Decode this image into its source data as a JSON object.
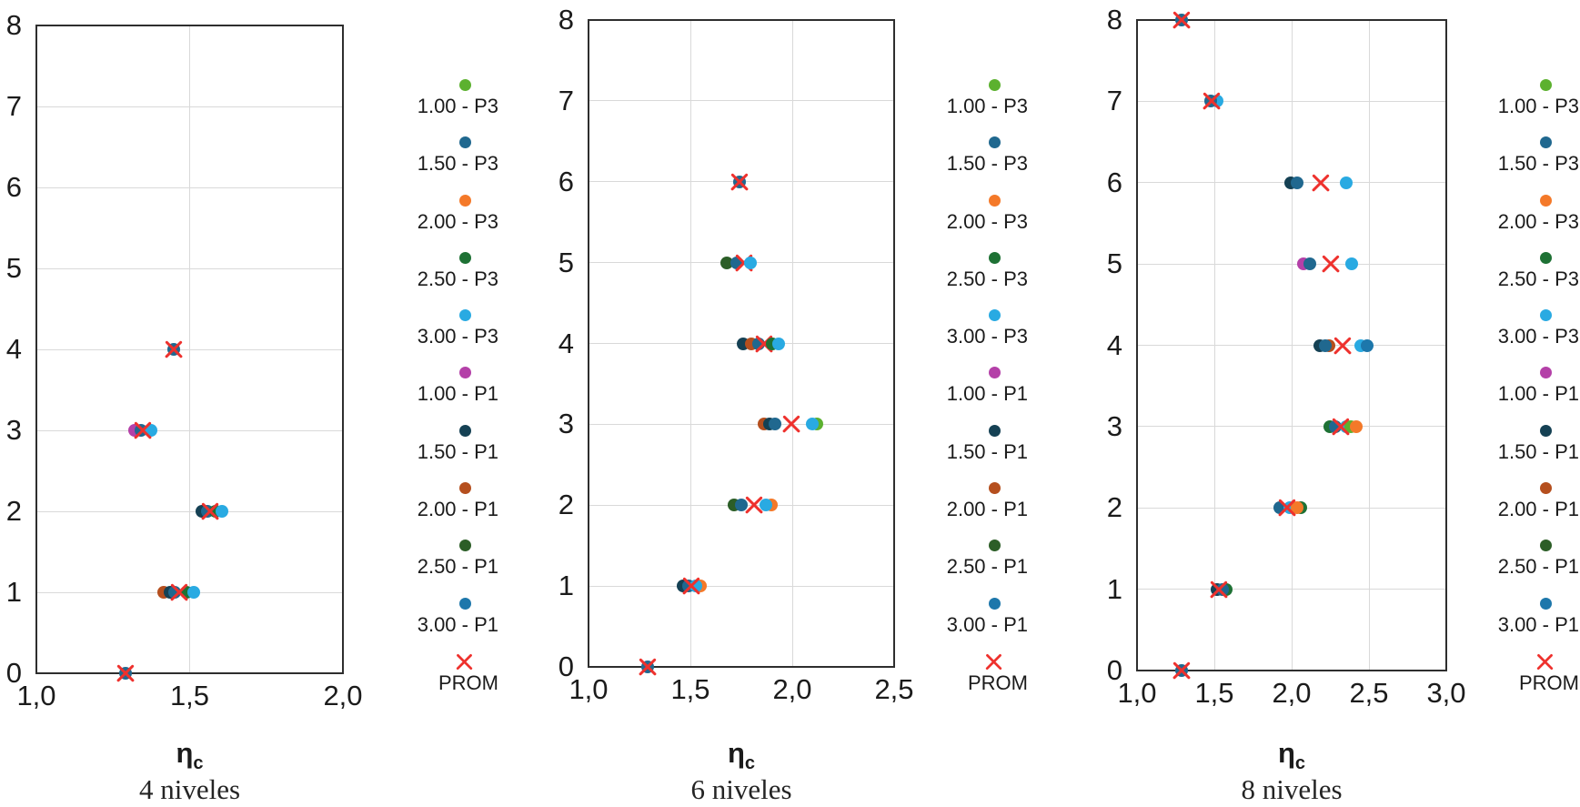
{
  "legend": {
    "items": [
      {
        "label": "1.00 - P3",
        "color": "#5cb12f",
        "marker": "circle"
      },
      {
        "label": "1.50 - P3",
        "color": "#20688f",
        "marker": "circle"
      },
      {
        "label": "2.00 - P3",
        "color": "#f47929",
        "marker": "circle"
      },
      {
        "label": "2.50 - P3",
        "color": "#1e7134",
        "marker": "circle"
      },
      {
        "label": "3.00 - P3",
        "color": "#29aae2",
        "marker": "circle"
      },
      {
        "label": "1.00 - P1",
        "color": "#b440a8",
        "marker": "circle"
      },
      {
        "label": "1.50 - P1",
        "color": "#154154",
        "marker": "circle"
      },
      {
        "label": "2.00 - P1",
        "color": "#b54f1e",
        "marker": "circle"
      },
      {
        "label": "2.50 - P1",
        "color": "#2c5e27",
        "marker": "circle"
      },
      {
        "label": "3.00 - P1",
        "color": "#1d77ab",
        "marker": "circle"
      },
      {
        "label": "PROM",
        "color": "#ee312d",
        "marker": "x"
      }
    ]
  },
  "chart_data": [
    {
      "type": "scatter",
      "title": "4 niveles",
      "xlabel": {
        "base": "η",
        "sub": "c"
      },
      "ylabel": "",
      "xlim": [
        1.0,
        2.0
      ],
      "ylim": [
        0,
        8
      ],
      "x_tick_values": [
        1.0,
        1.5,
        2.0
      ],
      "x_tick_labels": [
        "1,0",
        "1,5",
        "2,0"
      ],
      "y_tick_values": [
        0,
        1,
        2,
        3,
        4,
        5,
        6,
        7,
        8
      ],
      "grid": true,
      "points": [
        {
          "series": "1.50 - P3",
          "x": 1.29,
          "y": 0
        },
        {
          "series": "PROM",
          "x": 1.29,
          "y": 0
        },
        {
          "series": "2.00 - P1",
          "x": 1.415,
          "y": 1
        },
        {
          "series": "1.50 - P1",
          "x": 1.435,
          "y": 1
        },
        {
          "series": "1.50 - P3",
          "x": 1.452,
          "y": 1
        },
        {
          "series": "2.50 - P3",
          "x": 1.49,
          "y": 1
        },
        {
          "series": "PROM",
          "x": 1.465,
          "y": 1
        },
        {
          "series": "3.00 - P3",
          "x": 1.512,
          "y": 1
        },
        {
          "series": "1.50 - P1",
          "x": 1.54,
          "y": 2
        },
        {
          "series": "1.50 - P3",
          "x": 1.557,
          "y": 2
        },
        {
          "series": "2.50 - P3",
          "x": 1.585,
          "y": 2
        },
        {
          "series": "PROM",
          "x": 1.568,
          "y": 2
        },
        {
          "series": "3.00 - P3",
          "x": 1.605,
          "y": 2
        },
        {
          "series": "1.00 - P1",
          "x": 1.32,
          "y": 3
        },
        {
          "series": "1.50 - P3",
          "x": 1.34,
          "y": 3
        },
        {
          "series": "3.00 - P3",
          "x": 1.375,
          "y": 3
        },
        {
          "series": "PROM",
          "x": 1.346,
          "y": 3
        },
        {
          "series": "1.50 - P3",
          "x": 1.447,
          "y": 4
        },
        {
          "series": "PROM",
          "x": 1.447,
          "y": 4
        }
      ]
    },
    {
      "type": "scatter",
      "title": "6 niveles",
      "xlabel": {
        "base": "η",
        "sub": "c"
      },
      "ylabel": "",
      "xlim": [
        1.0,
        2.5
      ],
      "ylim": [
        0,
        8
      ],
      "x_tick_values": [
        1.0,
        1.5,
        2.0,
        2.5
      ],
      "x_tick_labels": [
        "1,0",
        "1,5",
        "2,0",
        "2,5"
      ],
      "y_tick_values": [
        0,
        1,
        2,
        3,
        4,
        5,
        6,
        7,
        8
      ],
      "grid": true,
      "points": [
        {
          "series": "1.50 - P3",
          "x": 1.29,
          "y": 0
        },
        {
          "series": "PROM",
          "x": 1.29,
          "y": 0
        },
        {
          "series": "1.50 - P1",
          "x": 1.465,
          "y": 1
        },
        {
          "series": "1.50 - P3",
          "x": 1.49,
          "y": 1
        },
        {
          "series": "2.00 - P3",
          "x": 1.547,
          "y": 1
        },
        {
          "series": "3.00 - P3",
          "x": 1.525,
          "y": 1
        },
        {
          "series": "PROM",
          "x": 1.505,
          "y": 1
        },
        {
          "series": "2.50 - P1",
          "x": 1.715,
          "y": 2
        },
        {
          "series": "1.50 - P3",
          "x": 1.748,
          "y": 2
        },
        {
          "series": "2.00 - P3",
          "x": 1.897,
          "y": 2
        },
        {
          "series": "3.00 - P3",
          "x": 1.872,
          "y": 2
        },
        {
          "series": "PROM",
          "x": 1.812,
          "y": 2
        },
        {
          "series": "2.00 - P1",
          "x": 1.862,
          "y": 3
        },
        {
          "series": "1.50 - P1",
          "x": 1.888,
          "y": 3
        },
        {
          "series": "1.50 - P3",
          "x": 1.915,
          "y": 3
        },
        {
          "series": "1.00 - P3",
          "x": 2.122,
          "y": 3
        },
        {
          "series": "3.00 - P3",
          "x": 2.098,
          "y": 3
        },
        {
          "series": "PROM",
          "x": 1.995,
          "y": 3
        },
        {
          "series": "1.50 - P1",
          "x": 1.76,
          "y": 4
        },
        {
          "series": "2.00 - P1",
          "x": 1.8,
          "y": 4
        },
        {
          "series": "1.50 - P3",
          "x": 1.835,
          "y": 4
        },
        {
          "series": "PROM",
          "x": 1.862,
          "y": 4
        },
        {
          "series": "2.50 - P3",
          "x": 1.9,
          "y": 4
        },
        {
          "series": "3.00 - P3",
          "x": 1.932,
          "y": 4
        },
        {
          "series": "2.50 - P1",
          "x": 1.68,
          "y": 5
        },
        {
          "series": "1.50 - P3",
          "x": 1.727,
          "y": 5
        },
        {
          "series": "PROM",
          "x": 1.763,
          "y": 5
        },
        {
          "series": "3.00 - P3",
          "x": 1.795,
          "y": 5
        },
        {
          "series": "1.50 - P3",
          "x": 1.74,
          "y": 6
        },
        {
          "series": "PROM",
          "x": 1.74,
          "y": 6
        }
      ]
    },
    {
      "type": "scatter",
      "title": "8 niveles",
      "xlabel": {
        "base": "η",
        "sub": "c"
      },
      "ylabel": "",
      "xlim": [
        1.0,
        3.0
      ],
      "ylim": [
        0,
        8
      ],
      "x_tick_values": [
        1.0,
        1.5,
        2.0,
        2.5,
        3.0
      ],
      "x_tick_labels": [
        "1,0",
        "1,5",
        "2,0",
        "2,5",
        "3,0"
      ],
      "y_tick_values": [
        0,
        1,
        2,
        3,
        4,
        5,
        6,
        7,
        8
      ],
      "grid": true,
      "points": [
        {
          "series": "1.50 - P3",
          "x": 1.29,
          "y": 0
        },
        {
          "series": "PROM",
          "x": 1.29,
          "y": 0
        },
        {
          "series": "2.50 - P3",
          "x": 1.578,
          "y": 1
        },
        {
          "series": "1.50 - P1",
          "x": 1.515,
          "y": 1
        },
        {
          "series": "1.50 - P3",
          "x": 1.552,
          "y": 1
        },
        {
          "series": "PROM",
          "x": 1.532,
          "y": 1
        },
        {
          "series": "1.50 - P3",
          "x": 1.925,
          "y": 2
        },
        {
          "series": "3.00 - P3",
          "x": 1.99,
          "y": 2
        },
        {
          "series": "2.50 - P3",
          "x": 2.057,
          "y": 2
        },
        {
          "series": "2.00 - P3",
          "x": 2.035,
          "y": 2
        },
        {
          "series": "PROM",
          "x": 1.972,
          "y": 2
        },
        {
          "series": "2.50 - P3",
          "x": 2.245,
          "y": 3
        },
        {
          "series": "1.50 - P3",
          "x": 2.28,
          "y": 3
        },
        {
          "series": "3.00 - P3",
          "x": 2.35,
          "y": 3
        },
        {
          "series": "1.00 - P3",
          "x": 2.385,
          "y": 3
        },
        {
          "series": "2.00 - P3",
          "x": 2.42,
          "y": 3
        },
        {
          "series": "PROM",
          "x": 2.315,
          "y": 3
        },
        {
          "series": "2.00 - P1",
          "x": 2.24,
          "y": 4
        },
        {
          "series": "1.50 - P1",
          "x": 2.185,
          "y": 4
        },
        {
          "series": "1.50 - P3",
          "x": 2.215,
          "y": 4
        },
        {
          "series": "PROM",
          "x": 2.33,
          "y": 4
        },
        {
          "series": "3.00 - P3",
          "x": 2.447,
          "y": 4
        },
        {
          "series": "3.00 - P1",
          "x": 2.487,
          "y": 4
        },
        {
          "series": "1.00 - P1",
          "x": 2.075,
          "y": 5
        },
        {
          "series": "1.50 - P3",
          "x": 2.115,
          "y": 5
        },
        {
          "series": "PROM",
          "x": 2.25,
          "y": 5
        },
        {
          "series": "3.00 - P3",
          "x": 2.39,
          "y": 5
        },
        {
          "series": "1.50 - P1",
          "x": 1.997,
          "y": 6
        },
        {
          "series": "1.50 - P3",
          "x": 2.037,
          "y": 6
        },
        {
          "series": "PROM",
          "x": 2.19,
          "y": 6
        },
        {
          "series": "3.00 - P3",
          "x": 2.35,
          "y": 6
        },
        {
          "series": "3.00 - P3",
          "x": 1.517,
          "y": 7
        },
        {
          "series": "1.50 - P3",
          "x": 1.477,
          "y": 7
        },
        {
          "series": "PROM",
          "x": 1.483,
          "y": 7
        },
        {
          "series": "1.50 - P3",
          "x": 1.29,
          "y": 8
        },
        {
          "series": "PROM",
          "x": 1.29,
          "y": 8
        }
      ]
    }
  ]
}
